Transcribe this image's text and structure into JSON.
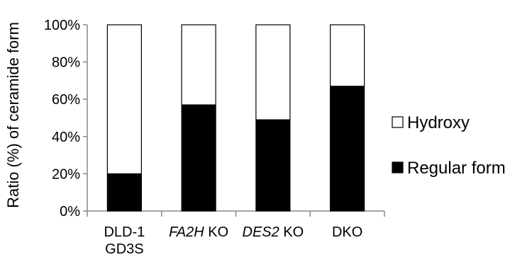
{
  "chart_data": {
    "type": "bar",
    "stacked": true,
    "percent": true,
    "categories": [
      {
        "lines": [
          [
            {
              "text": "DLD-1",
              "italic": false
            }
          ],
          [
            {
              "text": "GD3S",
              "italic": false
            }
          ]
        ]
      },
      {
        "lines": [
          [
            {
              "text": "FA2H",
              "italic": true
            },
            {
              "text": " KO",
              "italic": false
            }
          ]
        ]
      },
      {
        "lines": [
          [
            {
              "text": "DES2",
              "italic": true
            },
            {
              "text": " KO",
              "italic": false
            }
          ]
        ]
      },
      {
        "lines": [
          [
            {
              "text": "DKO",
              "italic": false
            }
          ]
        ]
      }
    ],
    "series": [
      {
        "name": "Regular form",
        "values": [
          20,
          57,
          49,
          67
        ],
        "color": "#000000"
      },
      {
        "name": "Hydroxy",
        "values": [
          80,
          43,
          51,
          33
        ],
        "color": "#ffffff"
      }
    ],
    "legend_order": [
      1,
      0
    ],
    "ylabel": "Ratio (%) of ceramide form",
    "ylim": [
      0,
      100
    ],
    "yticks": [
      0,
      20,
      40,
      60,
      80,
      100
    ],
    "ytick_labels": [
      "0%",
      "20%",
      "40%",
      "60%",
      "80%",
      "100%"
    ],
    "grid": false,
    "legend_position": "right"
  }
}
